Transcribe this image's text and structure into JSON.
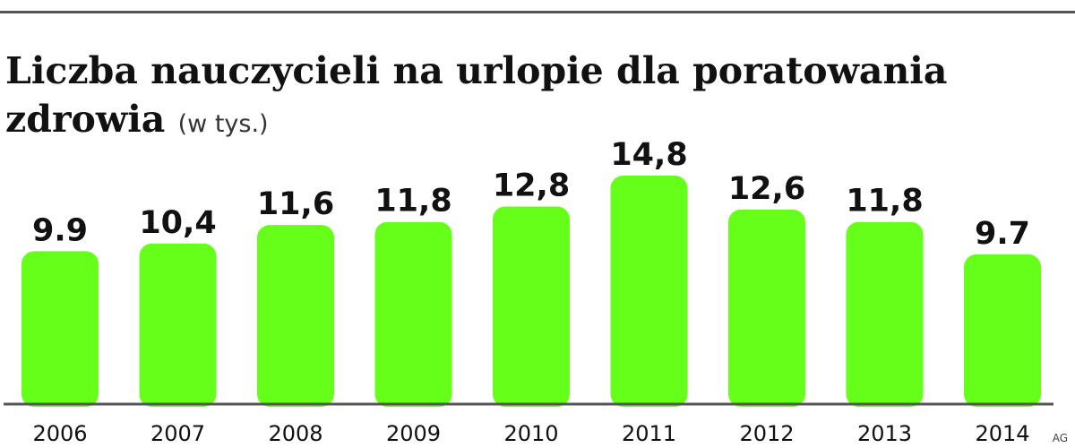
{
  "chart_data": {
    "type": "bar",
    "title": "Liczba nauczycieli na urlopie dla poratowania zdrowia",
    "subtitle": "(w tys.)",
    "categories": [
      "2006",
      "2007",
      "2008",
      "2009",
      "2010",
      "2011",
      "2012",
      "2013",
      "2014"
    ],
    "values": [
      9.9,
      10.4,
      11.6,
      11.8,
      12.8,
      14.8,
      12.6,
      11.8,
      9.7
    ],
    "value_labels": [
      "9.9",
      "10,4",
      "11,6",
      "11,8",
      "12,8",
      "14,8",
      "12,6",
      "11,8",
      "9.7"
    ],
    "ylim": [
      0,
      14.8
    ],
    "grid": false,
    "legend": "none",
    "bar_color": "#66ff1a"
  },
  "credit": "AG"
}
